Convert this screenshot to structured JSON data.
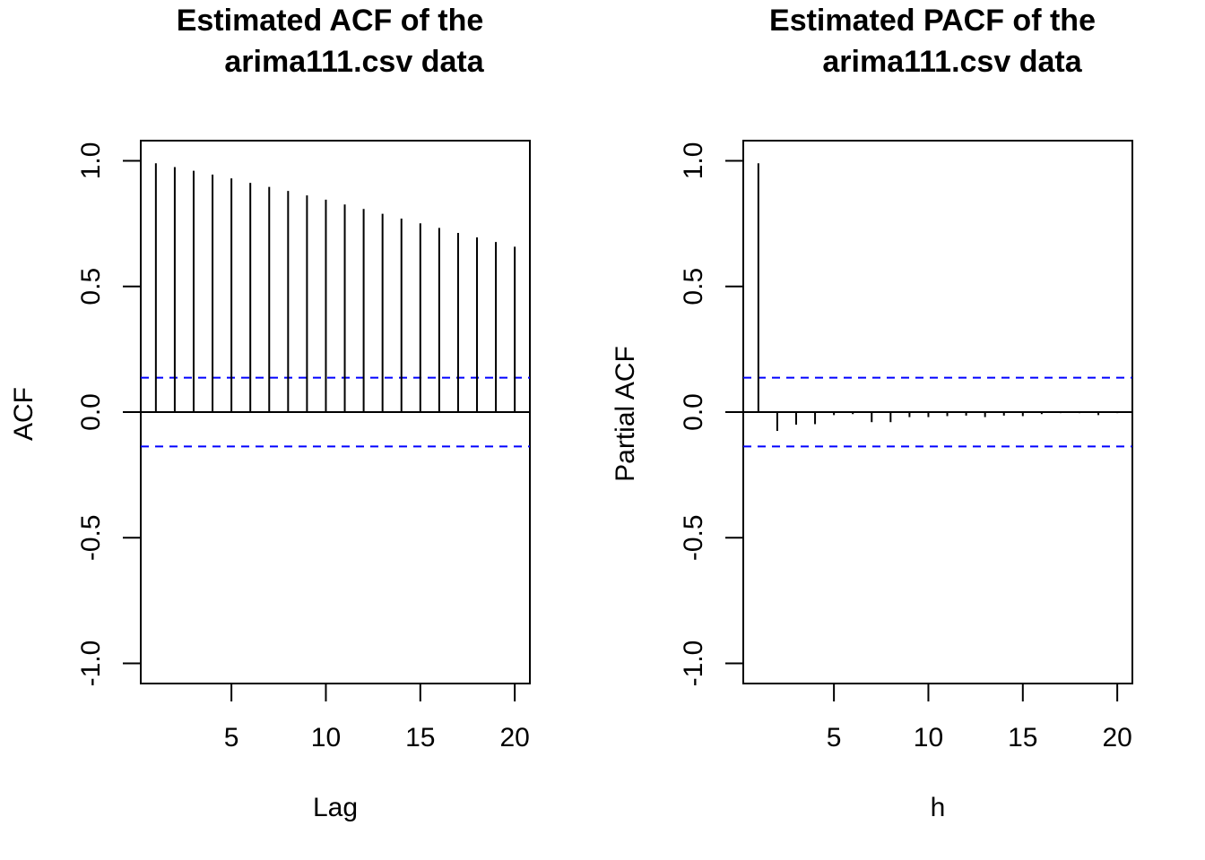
{
  "chart_data": [
    {
      "type": "bar",
      "title_lines": [
        "Estimated ACF of the",
        "arima111.csv data"
      ],
      "xlabel": "Lag",
      "ylabel": "ACF",
      "x": [
        1,
        2,
        3,
        4,
        5,
        6,
        7,
        8,
        9,
        10,
        11,
        12,
        13,
        14,
        15,
        16,
        17,
        18,
        19,
        20
      ],
      "values": [
        0.99,
        0.975,
        0.96,
        0.945,
        0.93,
        0.912,
        0.896,
        0.88,
        0.862,
        0.845,
        0.826,
        0.808,
        0.789,
        0.77,
        0.751,
        0.733,
        0.713,
        0.695,
        0.677,
        0.658
      ],
      "xticks": [
        5,
        10,
        15,
        20
      ],
      "yticks": [
        -1.0,
        -0.5,
        0.0,
        0.5,
        1.0
      ],
      "ytick_labels": [
        "-1.0",
        "-0.5",
        "0.0",
        "0.5",
        "1.0"
      ],
      "xlim": [
        0.2,
        20.8
      ],
      "ylim": [
        -1.08,
        1.08
      ],
      "confidence_bounds": [
        0.137,
        -0.137
      ],
      "grid": false,
      "colors": {
        "bars": "#000000",
        "bounds": "#0000ff"
      }
    },
    {
      "type": "bar",
      "title_lines": [
        "Estimated PACF of the",
        "arima111.csv data"
      ],
      "xlabel": "h",
      "ylabel": "Partial ACF",
      "x": [
        1,
        2,
        3,
        4,
        5,
        6,
        7,
        8,
        9,
        10,
        11,
        12,
        13,
        14,
        15,
        16,
        17,
        18,
        19,
        20
      ],
      "values": [
        0.99,
        -0.075,
        -0.05,
        -0.048,
        -0.012,
        -0.008,
        -0.04,
        -0.04,
        -0.02,
        -0.02,
        -0.016,
        -0.014,
        -0.02,
        -0.014,
        -0.016,
        -0.008,
        -0.004,
        -0.004,
        -0.012,
        -0.004
      ],
      "xticks": [
        5,
        10,
        15,
        20
      ],
      "yticks": [
        -1.0,
        -0.5,
        0.0,
        0.5,
        1.0
      ],
      "ytick_labels": [
        "-1.0",
        "-0.5",
        "0.0",
        "0.5",
        "1.0"
      ],
      "xlim": [
        0.2,
        20.8
      ],
      "ylim": [
        -1.08,
        1.08
      ],
      "confidence_bounds": [
        0.137,
        -0.137
      ],
      "grid": false,
      "colors": {
        "bars": "#000000",
        "bounds": "#0000ff"
      }
    }
  ]
}
